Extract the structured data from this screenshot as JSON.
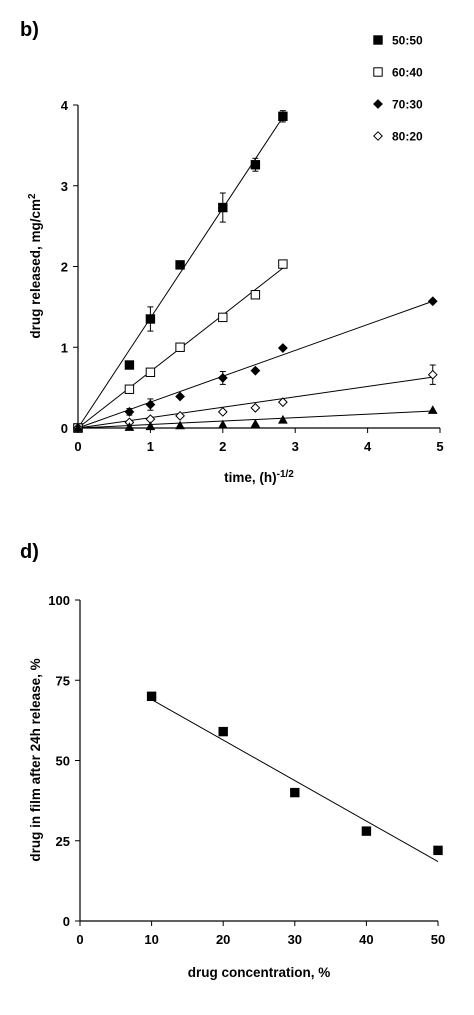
{
  "chart_data": [
    {
      "panel_label": "b)",
      "type": "scatter",
      "xlabel": "time, (h)",
      "xlabel_superscript": "-1/2",
      "ylabel": "drug released, mg/cm",
      "ylabel_superscript": "2",
      "xlim": [
        0,
        5
      ],
      "ylim": [
        0,
        4
      ],
      "xticks": [
        "0",
        "1",
        "2",
        "3",
        "4",
        "5"
      ],
      "yticks": [
        "0",
        "1",
        "2",
        "3",
        "4"
      ],
      "grid": false,
      "legend_position": "top-right",
      "series": [
        {
          "name": "50:50",
          "marker": "filled-square",
          "x": [
            0,
            0.71,
            1.0,
            1.41,
            2.0,
            2.45,
            2.83
          ],
          "y": [
            0,
            0.78,
            1.35,
            2.02,
            2.73,
            3.26,
            3.86
          ],
          "err": [
            0,
            0,
            0.15,
            0,
            0.18,
            0.08,
            0.07
          ],
          "fit": {
            "x": [
              0,
              2.83
            ],
            "y": [
              0,
              3.85
            ]
          }
        },
        {
          "name": "60:40",
          "marker": "open-square",
          "x": [
            0,
            0.71,
            1.0,
            1.41,
            2.0,
            2.45,
            2.83
          ],
          "y": [
            0,
            0.48,
            0.69,
            1.0,
            1.37,
            1.65,
            2.03
          ],
          "err": [
            0,
            0,
            0,
            0,
            0,
            0,
            0
          ],
          "fit": {
            "x": [
              0,
              2.83
            ],
            "y": [
              0,
              1.98
            ]
          }
        },
        {
          "name": "70:30",
          "marker": "filled-diamond",
          "x": [
            0,
            0.71,
            1.0,
            1.41,
            2.0,
            2.45,
            2.83,
            4.9
          ],
          "y": [
            0,
            0.2,
            0.29,
            0.39,
            0.62,
            0.71,
            0.99,
            1.57
          ],
          "err": [
            0,
            0.04,
            0.07,
            0,
            0.08,
            0,
            0,
            0
          ],
          "fit": {
            "x": [
              0,
              4.9
            ],
            "y": [
              0,
              1.57
            ]
          }
        },
        {
          "name": "80:20",
          "marker": "open-diamond",
          "x": [
            0,
            0.71,
            1.0,
            1.41,
            2.0,
            2.45,
            2.83,
            4.9
          ],
          "y": [
            0,
            0.07,
            0.11,
            0.15,
            0.2,
            0.25,
            0.32,
            0.66
          ],
          "err": [
            0,
            0,
            0,
            0,
            0,
            0,
            0,
            0.12
          ],
          "fit": {
            "x": [
              0,
              4.9
            ],
            "y": [
              0,
              0.63
            ]
          }
        },
        {
          "marker": "filled-triangle",
          "x": [
            0,
            0.71,
            1.0,
            1.41,
            2.0,
            2.45,
            2.83,
            4.9
          ],
          "y": [
            0,
            0.01,
            0.02,
            0.03,
            0.04,
            0.05,
            0.1,
            0.22
          ],
          "err": [
            0,
            0,
            0,
            0,
            0,
            0,
            0,
            0
          ],
          "fit": {
            "x": [
              0,
              4.9
            ],
            "y": [
              0,
              0.21
            ]
          }
        }
      ]
    },
    {
      "panel_label": "d)",
      "type": "scatter",
      "xlabel": "drug concentration, %",
      "ylabel": "drug in film after 24h release, %",
      "xlim": [
        0,
        50
      ],
      "ylim": [
        0,
        100
      ],
      "xticks": [
        "0",
        "10",
        "20",
        "30",
        "40",
        "50"
      ],
      "yticks": [
        "0",
        "25",
        "50",
        "75",
        "100"
      ],
      "grid": false,
      "series": [
        {
          "marker": "filled-square",
          "x": [
            10,
            20,
            30,
            40,
            50
          ],
          "y": [
            70,
            59,
            40,
            28,
            22
          ],
          "fit": {
            "x": [
              10,
              50
            ],
            "y": [
              69,
              18.5
            ]
          }
        }
      ]
    }
  ]
}
